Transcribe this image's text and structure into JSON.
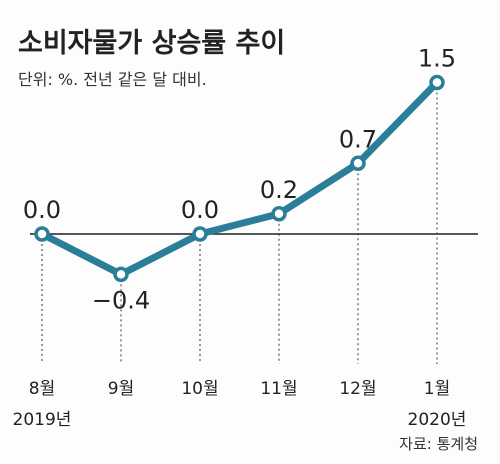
{
  "header": {
    "title": "소비자물가 상승률 추이",
    "unit_note": "단위: %. 전년 같은 달 대비."
  },
  "source": "자료: 통계청",
  "chart_data": {
    "type": "line",
    "title": "소비자물가 상승률 추이",
    "categories": [
      "8월",
      "9월",
      "10월",
      "11월",
      "12월",
      "1월"
    ],
    "year_labels": [
      {
        "category": "8월",
        "text": "2019년"
      },
      {
        "category": "1월",
        "text": "2020년"
      }
    ],
    "series": [
      {
        "values": [
          0.0,
          -0.4,
          0.0,
          0.2,
          0.7,
          1.5
        ]
      }
    ],
    "value_labels": [
      "0.0",
      "−0.4",
      "0.0",
      "0.2",
      "0.7",
      "1.5"
    ],
    "ylim": [
      -0.4,
      1.5
    ],
    "baseline": 0,
    "grid": false,
    "colors": {
      "line": "#2b7e97",
      "marker_fill": "#ffffff",
      "axis": "#222222",
      "guide": "#555555"
    }
  }
}
